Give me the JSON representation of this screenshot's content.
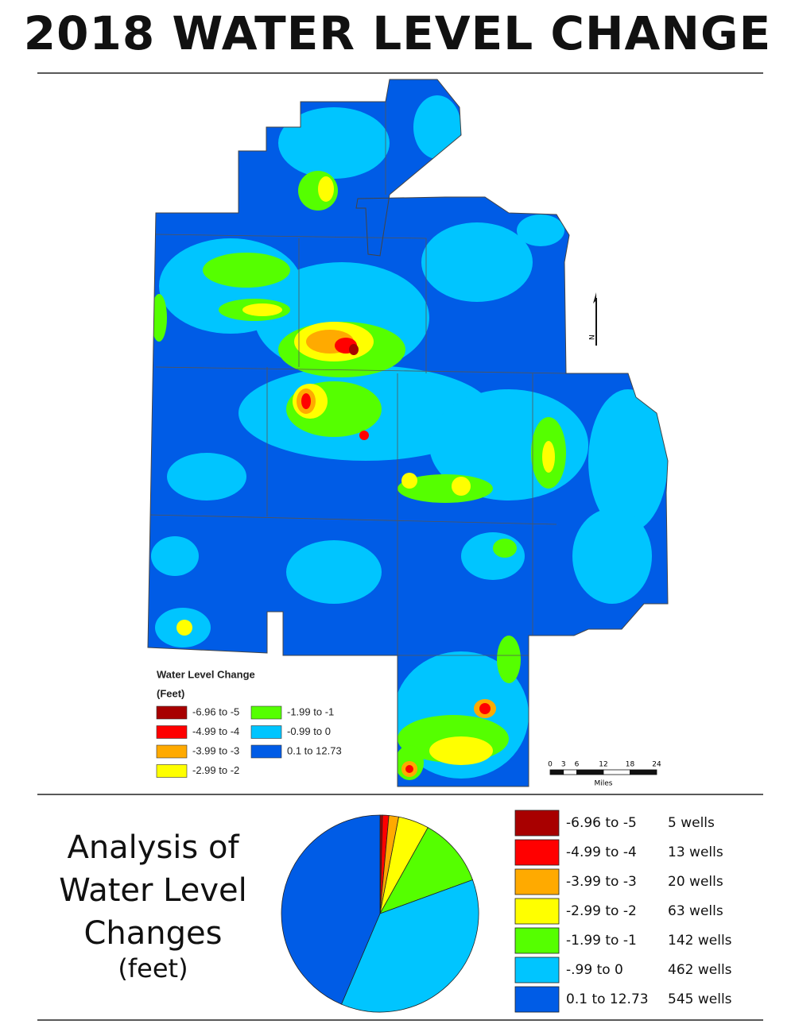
{
  "title": "2018 WATER LEVEL CHANGE",
  "map": {
    "legend": {
      "title": "Water Level Change",
      "unit": "(Feet)",
      "items": [
        {
          "label": "-6.96 to -5",
          "color": "#a80000"
        },
        {
          "label": "-4.99 to -4",
          "color": "#ff0000"
        },
        {
          "label": "-3.99 to -3",
          "color": "#ffaa00"
        },
        {
          "label": "-2.99 to -2",
          "color": "#ffff00"
        },
        {
          "label": "-1.99 to -1",
          "color": "#55ff00"
        },
        {
          "label": "-0.99 to 0",
          "color": "#00c5ff"
        },
        {
          "label": "0.1 to 12.73",
          "color": "#005ce6"
        }
      ]
    },
    "north_label": "N",
    "scale_ticks": [
      0,
      3,
      6,
      12,
      18,
      24
    ],
    "scale_unit": "Miles"
  },
  "chart_data": {
    "type": "pie",
    "title": "Analysis of Water Level Changes",
    "subtitle": "(feet)",
    "categories": [
      "-6.96 to -5",
      "-4.99 to -4",
      "-3.99 to -3",
      "-2.99 to -2",
      "-1.99 to -1",
      "-.99 to 0",
      "0.1 to 12.73"
    ],
    "values": [
      5,
      13,
      20,
      63,
      142,
      462,
      545
    ],
    "value_labels": [
      "5 wells",
      "13 wells",
      "20 wells",
      "63 wells",
      "142 wells",
      "462 wells",
      "545 wells"
    ],
    "colors": [
      "#a80000",
      "#ff0000",
      "#ffaa00",
      "#ffff00",
      "#55ff00",
      "#00c5ff",
      "#005ce6"
    ]
  }
}
